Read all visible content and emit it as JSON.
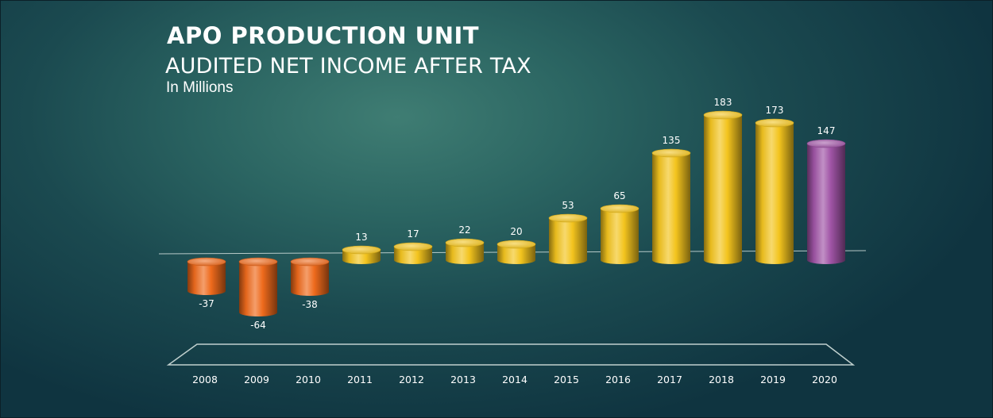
{
  "header": {
    "title": "APO PRODUCTION UNIT",
    "subtitle": "AUDITED NET INCOME AFTER TAX",
    "units": "In Millions"
  },
  "colors": {
    "negative": "#ee6a1c",
    "positive": "#f3c41e",
    "highlight": "#a054a6",
    "text": "#ffffff",
    "axis": "#c9d8d6"
  },
  "chart_data": {
    "type": "bar",
    "title": "APO PRODUCTION UNIT",
    "subtitle": "AUDITED NET INCOME AFTER TAX",
    "ylabel": "In Millions",
    "xlabel": "",
    "categories": [
      "2008",
      "2009",
      "2010",
      "2011",
      "2012",
      "2013",
      "2014",
      "2015",
      "2016",
      "2017",
      "2018",
      "2019",
      "2020"
    ],
    "values": [
      -37,
      -64,
      -38,
      13,
      17,
      22,
      20,
      53,
      65,
      135,
      183,
      173,
      147
    ],
    "data_labels": [
      "-37",
      "-64",
      "-38",
      "13",
      "17",
      "22",
      "20",
      "53",
      "65",
      "135",
      "183",
      "173",
      "147"
    ],
    "highlight_category": "2020",
    "ylim": [
      -64,
      183
    ],
    "grid": false,
    "legend": "none"
  }
}
